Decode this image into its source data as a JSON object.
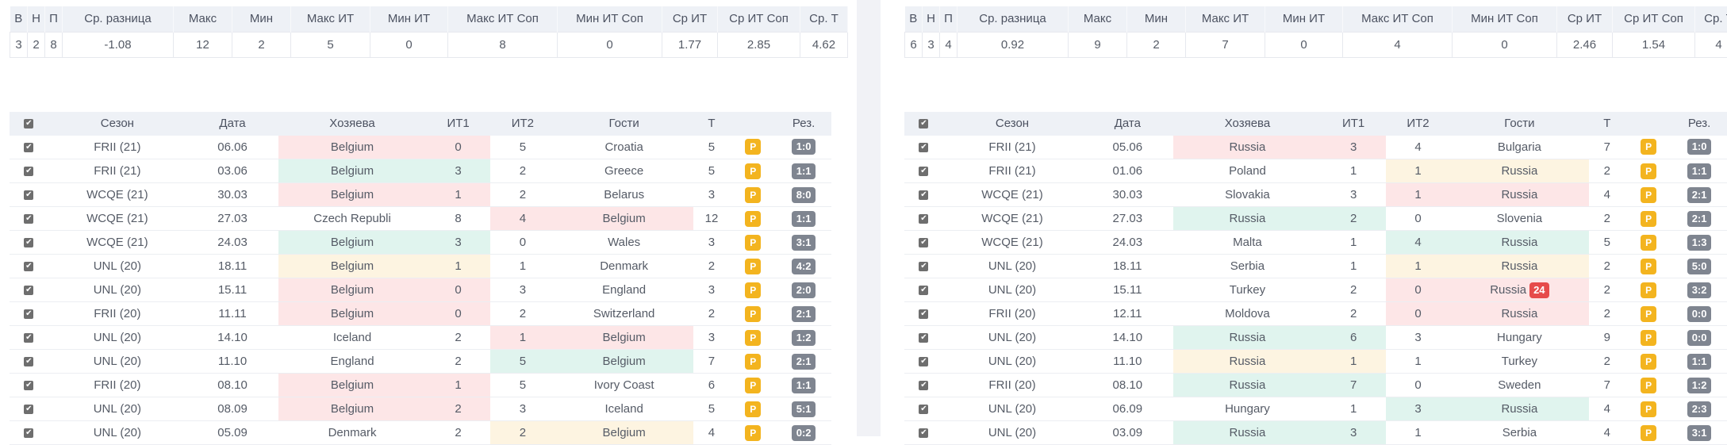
{
  "stats_headers": [
    "В",
    "Н",
    "П",
    "Ср. разница",
    "Макс",
    "Мин",
    "Макс ИТ",
    "Мин ИТ",
    "Макс ИТ Соп",
    "Мин ИТ Соп",
    "Ср ИТ",
    "Ср ИТ Соп",
    "Ср. Т"
  ],
  "game_headers": {
    "check": "✔",
    "season": "Сезон",
    "date": "Дата",
    "home": "Хозяева",
    "it1": "ИТ1",
    "it2": "ИТ2",
    "away": "Гости",
    "t": "Т",
    "p": "",
    "res": "Рез."
  },
  "colors": {
    "loss": "#fde6e7",
    "win": "#e0f4ee",
    "draw": "#fdf4e1",
    "p_badge": "#f3b41f",
    "score_badge": "#7f8590",
    "red_badge": "#e64b4b"
  },
  "panels": [
    {
      "stats": [
        "3",
        "2",
        "8",
        "-1.08",
        "12",
        "2",
        "5",
        "0",
        "8",
        "0",
        "1.77",
        "2.85",
        "4.62"
      ],
      "games": [
        {
          "season": "FRII (21)",
          "date": "06.06",
          "home": "Belgium",
          "it1": "0",
          "it2": "5",
          "away": "Croatia",
          "t": "5",
          "p": "P",
          "res": "1:0",
          "hl": "home",
          "hc": "red"
        },
        {
          "season": "FRII (21)",
          "date": "03.06",
          "home": "Belgium",
          "it1": "3",
          "it2": "2",
          "away": "Greece",
          "t": "5",
          "p": "P",
          "res": "1:1",
          "hl": "home",
          "hc": "green"
        },
        {
          "season": "WCQE (21)",
          "date": "30.03",
          "home": "Belgium",
          "it1": "1",
          "it2": "2",
          "away": "Belarus",
          "t": "3",
          "p": "P",
          "res": "8:0",
          "hl": "home",
          "hc": "red"
        },
        {
          "season": "WCQE (21)",
          "date": "27.03",
          "home": "Czech Republi",
          "it1": "8",
          "it2": "4",
          "away": "Belgium",
          "t": "12",
          "p": "P",
          "res": "1:1",
          "hl": "away",
          "hc": "red"
        },
        {
          "season": "WCQE (21)",
          "date": "24.03",
          "home": "Belgium",
          "it1": "3",
          "it2": "0",
          "away": "Wales",
          "t": "3",
          "p": "P",
          "res": "3:1",
          "hl": "home",
          "hc": "green"
        },
        {
          "season": "UNL (20)",
          "date": "18.11",
          "home": "Belgium",
          "it1": "1",
          "it2": "1",
          "away": "Denmark",
          "t": "2",
          "p": "P",
          "res": "4:2",
          "hl": "home",
          "hc": "yellow"
        },
        {
          "season": "UNL (20)",
          "date": "15.11",
          "home": "Belgium",
          "it1": "0",
          "it2": "3",
          "away": "England",
          "t": "3",
          "p": "P",
          "res": "2:0",
          "hl": "home",
          "hc": "red"
        },
        {
          "season": "FRII (20)",
          "date": "11.11",
          "home": "Belgium",
          "it1": "0",
          "it2": "2",
          "away": "Switzerland",
          "t": "2",
          "p": "P",
          "res": "2:1",
          "hl": "home",
          "hc": "red"
        },
        {
          "season": "UNL (20)",
          "date": "14.10",
          "home": "Iceland",
          "it1": "2",
          "it2": "1",
          "away": "Belgium",
          "t": "3",
          "p": "P",
          "res": "1:2",
          "hl": "away",
          "hc": "red"
        },
        {
          "season": "UNL (20)",
          "date": "11.10",
          "home": "England",
          "it1": "2",
          "it2": "5",
          "away": "Belgium",
          "t": "7",
          "p": "P",
          "res": "2:1",
          "hl": "away",
          "hc": "green"
        },
        {
          "season": "FRII (20)",
          "date": "08.10",
          "home": "Belgium",
          "it1": "1",
          "it2": "5",
          "away": "Ivory Coast",
          "t": "6",
          "p": "P",
          "res": "1:1",
          "hl": "home",
          "hc": "red"
        },
        {
          "season": "UNL (20)",
          "date": "08.09",
          "home": "Belgium",
          "it1": "2",
          "it2": "3",
          "away": "Iceland",
          "t": "5",
          "p": "P",
          "res": "5:1",
          "hl": "home",
          "hc": "red"
        },
        {
          "season": "UNL (20)",
          "date": "05.09",
          "home": "Denmark",
          "it1": "2",
          "it2": "2",
          "away": "Belgium",
          "t": "4",
          "p": "P",
          "res": "0:2",
          "hl": "away",
          "hc": "yellow"
        }
      ]
    },
    {
      "stats": [
        "6",
        "3",
        "4",
        "0.92",
        "9",
        "2",
        "7",
        "0",
        "4",
        "0",
        "2.46",
        "1.54",
        "4"
      ],
      "games": [
        {
          "season": "FRII (21)",
          "date": "05.06",
          "home": "Russia",
          "it1": "3",
          "it2": "4",
          "away": "Bulgaria",
          "t": "7",
          "p": "P",
          "res": "1:0",
          "hl": "home",
          "hc": "red"
        },
        {
          "season": "FRII (21)",
          "date": "01.06",
          "home": "Poland",
          "it1": "1",
          "it2": "1",
          "away": "Russia",
          "t": "2",
          "p": "P",
          "res": "1:1",
          "hl": "away",
          "hc": "yellow"
        },
        {
          "season": "WCQE (21)",
          "date": "30.03",
          "home": "Slovakia",
          "it1": "3",
          "it2": "1",
          "away": "Russia",
          "t": "4",
          "p": "P",
          "res": "2:1",
          "hl": "away",
          "hc": "red"
        },
        {
          "season": "WCQE (21)",
          "date": "27.03",
          "home": "Russia",
          "it1": "2",
          "it2": "0",
          "away": "Slovenia",
          "t": "2",
          "p": "P",
          "res": "2:1",
          "hl": "home",
          "hc": "green"
        },
        {
          "season": "WCQE (21)",
          "date": "24.03",
          "home": "Malta",
          "it1": "1",
          "it2": "4",
          "away": "Russia",
          "t": "5",
          "p": "P",
          "res": "1:3",
          "hl": "away",
          "hc": "green"
        },
        {
          "season": "UNL (20)",
          "date": "18.11",
          "home": "Serbia",
          "it1": "1",
          "it2": "1",
          "away": "Russia",
          "t": "2",
          "p": "P",
          "res": "5:0",
          "hl": "away",
          "hc": "yellow"
        },
        {
          "season": "UNL (20)",
          "date": "15.11",
          "home": "Turkey",
          "it1": "2",
          "it2": "0",
          "away": "Russia",
          "badge": "24",
          "t": "2",
          "p": "P",
          "res": "3:2",
          "hl": "away",
          "hc": "red"
        },
        {
          "season": "FRII (20)",
          "date": "12.11",
          "home": "Moldova",
          "it1": "2",
          "it2": "0",
          "away": "Russia",
          "t": "2",
          "p": "P",
          "res": "0:0",
          "hl": "away",
          "hc": "red"
        },
        {
          "season": "UNL (20)",
          "date": "14.10",
          "home": "Russia",
          "it1": "6",
          "it2": "3",
          "away": "Hungary",
          "t": "9",
          "p": "P",
          "res": "0:0",
          "hl": "home",
          "hc": "green"
        },
        {
          "season": "UNL (20)",
          "date": "11.10",
          "home": "Russia",
          "it1": "1",
          "it2": "1",
          "away": "Turkey",
          "t": "2",
          "p": "P",
          "res": "1:1",
          "hl": "home",
          "hc": "yellow"
        },
        {
          "season": "FRII (20)",
          "date": "08.10",
          "home": "Russia",
          "it1": "7",
          "it2": "0",
          "away": "Sweden",
          "t": "7",
          "p": "P",
          "res": "1:2",
          "hl": "home",
          "hc": "green"
        },
        {
          "season": "UNL (20)",
          "date": "06.09",
          "home": "Hungary",
          "it1": "1",
          "it2": "3",
          "away": "Russia",
          "t": "4",
          "p": "P",
          "res": "2:3",
          "hl": "away",
          "hc": "green"
        },
        {
          "season": "UNL (20)",
          "date": "03.09",
          "home": "Russia",
          "it1": "3",
          "it2": "1",
          "away": "Serbia",
          "t": "4",
          "p": "P",
          "res": "3:1",
          "hl": "home",
          "hc": "green"
        }
      ]
    }
  ]
}
